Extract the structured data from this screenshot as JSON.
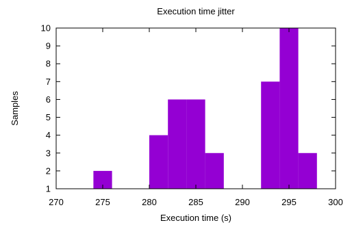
{
  "chart_data": {
    "type": "bar",
    "title": "Execution time jitter",
    "xlabel": "Execution time (s)",
    "ylabel": "Samples",
    "xlim": [
      270,
      300
    ],
    "ylim": [
      1,
      10
    ],
    "xticks": [
      270,
      275,
      280,
      285,
      290,
      295,
      300
    ],
    "yticks": [
      1,
      2,
      3,
      4,
      5,
      6,
      7,
      8,
      9,
      10
    ],
    "bin_width": 2,
    "bins": [
      {
        "start": 274,
        "end": 276,
        "value": 2
      },
      {
        "start": 280,
        "end": 282,
        "value": 4
      },
      {
        "start": 282,
        "end": 284,
        "value": 6
      },
      {
        "start": 284,
        "end": 286,
        "value": 6
      },
      {
        "start": 286,
        "end": 288,
        "value": 3
      },
      {
        "start": 292,
        "end": 294,
        "value": 7
      },
      {
        "start": 294,
        "end": 296,
        "value": 10
      },
      {
        "start": 296,
        "end": 298,
        "value": 3
      }
    ],
    "bar_color": "#9400d3",
    "grid": false,
    "legend": "none"
  }
}
